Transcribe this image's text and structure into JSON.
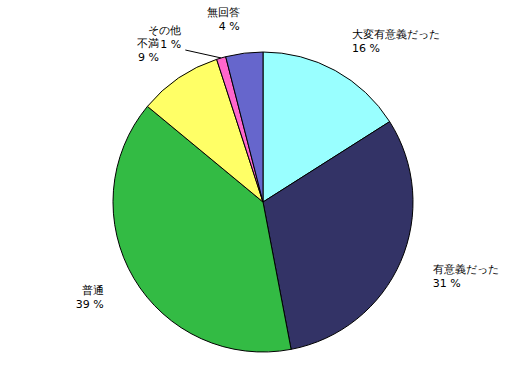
{
  "chart_data": {
    "type": "pie",
    "categories": [
      "大変有意義だった",
      "有意義だった",
      "普通",
      "不満",
      "その他",
      "無回答"
    ],
    "values": [
      16,
      31,
      39,
      9,
      1,
      4
    ],
    "value_labels": [
      "16 %",
      "31 %",
      "39 %",
      "9 %",
      "1 %",
      "4 %"
    ],
    "colors": [
      "#99ffff",
      "#333366",
      "#33bb44",
      "#ffff66",
      "#ff66cc",
      "#6666cc"
    ],
    "data_labels": true
  }
}
